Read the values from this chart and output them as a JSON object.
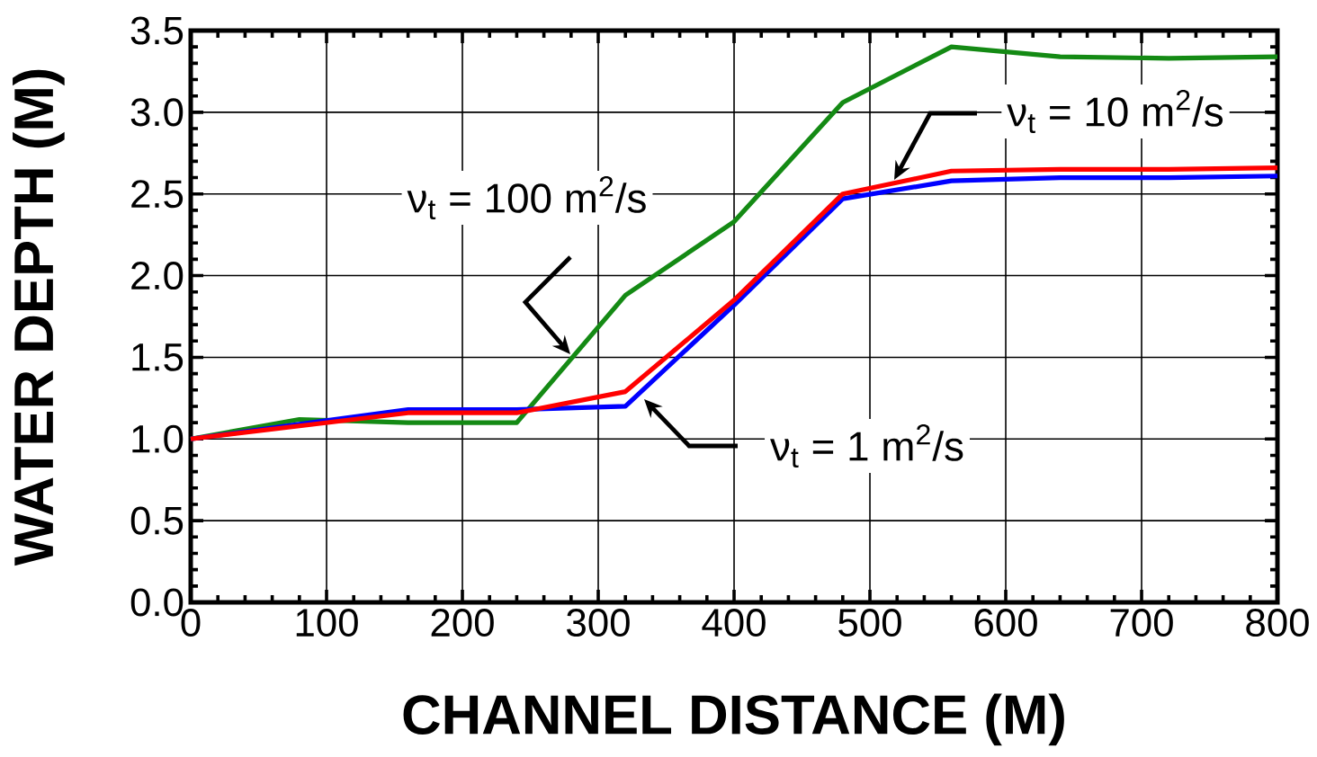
{
  "chart_data": {
    "type": "line",
    "xlabel": "CHANNEL DISTANCE (M)",
    "ylabel": "WATER DEPTH (M)",
    "x": [
      0,
      80,
      160,
      240,
      320,
      400,
      480,
      560,
      640,
      720,
      800
    ],
    "series": [
      {
        "color": "#148a14",
        "values": [
          1.0,
          1.12,
          1.1,
          1.1,
          1.88,
          2.33,
          3.06,
          3.4,
          3.34,
          3.33,
          3.34
        ]
      },
      {
        "color": "#0000ff",
        "values": [
          1.0,
          1.09,
          1.18,
          1.18,
          1.2,
          1.82,
          2.47,
          2.58,
          2.6,
          2.6,
          2.61
        ]
      },
      {
        "color": "#ff0000",
        "values": [
          1.0,
          1.08,
          1.16,
          1.16,
          1.29,
          1.85,
          2.5,
          2.64,
          2.65,
          2.65,
          2.66
        ]
      }
    ],
    "xlim": [
      0,
      800
    ],
    "xticks": [
      0,
      100,
      200,
      300,
      400,
      500,
      600,
      700,
      800
    ],
    "ylim": [
      0,
      3.5
    ],
    "yticks": [
      {
        "value": 0,
        "label": "0.0"
      },
      {
        "value": 0.5,
        "label": "0.5"
      },
      {
        "value": 1,
        "label": "1.0"
      },
      {
        "value": 1.5,
        "label": "1.5"
      },
      {
        "value": 2,
        "label": "2.0"
      },
      {
        "value": 2.5,
        "label": "2.5"
      },
      {
        "value": 3,
        "label": "3.0"
      },
      {
        "value": 3.5,
        "label": "3.5"
      }
    ],
    "grid": true,
    "legend": false,
    "marker": "none",
    "line_style": "solid",
    "annotations": [
      "ν$_{t}$ = 100 m$^{2}$/s",
      "ν$_{t}$ = 10 m$^{2}$/s",
      "ν$_{t}$ = 1 m$^{2}$/s"
    ]
  }
}
